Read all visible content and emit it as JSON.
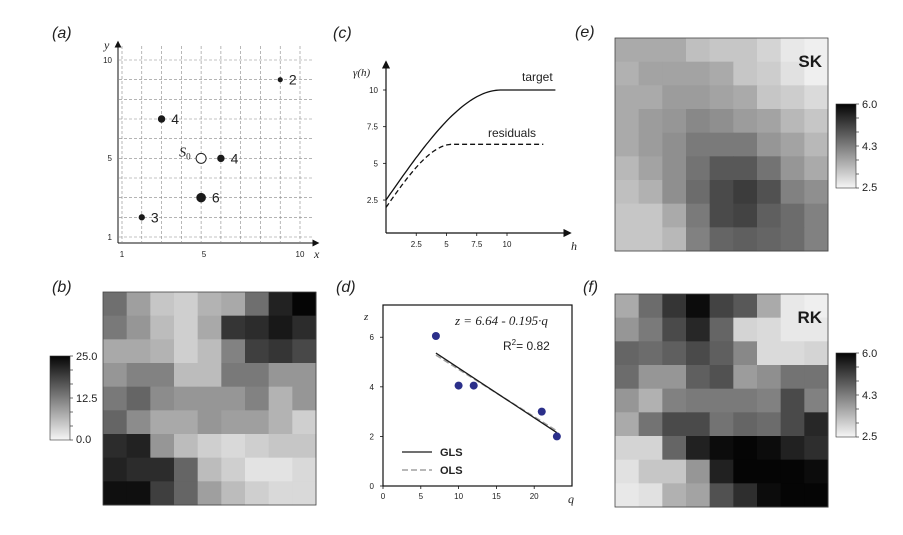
{
  "chart_data": [
    {
      "id": "a",
      "panel_label": "(a)",
      "type": "scatter",
      "title": "",
      "xlabel": "x",
      "ylabel": "y",
      "xlim": [
        1,
        10
      ],
      "ylim": [
        1,
        10
      ],
      "xticks": [
        "1",
        "5",
        "10"
      ],
      "yticks": [
        "1",
        "5",
        "10"
      ],
      "grid": true,
      "points": [
        {
          "x": 2,
          "y": 2,
          "value": 3,
          "label": "3"
        },
        {
          "x": 3,
          "y": 7,
          "value": 4,
          "label": "4"
        },
        {
          "x": 5,
          "y": 3,
          "value": 6,
          "label": "6"
        },
        {
          "x": 6,
          "y": 5,
          "value": 4,
          "label": "4"
        },
        {
          "x": 9,
          "y": 9,
          "value": 2,
          "label": "2"
        }
      ],
      "target_point": {
        "x": 5,
        "y": 5,
        "label": "S",
        "subscript": "0"
      }
    },
    {
      "id": "b",
      "panel_label": "(b)",
      "type": "heatmap",
      "title": "",
      "colorbar": {
        "min": 0.0,
        "max": 25.0,
        "ticks": [
          "0.0",
          "12.5",
          "25.0"
        ]
      },
      "values": [
        [
          14,
          9,
          5,
          4,
          7,
          8,
          14,
          22,
          25
        ],
        [
          13,
          10,
          6,
          4,
          8,
          20,
          21,
          23,
          21
        ],
        [
          8,
          8,
          7,
          4,
          6,
          12,
          19,
          20,
          18
        ],
        [
          10,
          12,
          12,
          6,
          6,
          13,
          13,
          10,
          10
        ],
        [
          13,
          15,
          11,
          10,
          10,
          10,
          12,
          7,
          10
        ],
        [
          15,
          11,
          8,
          8,
          10,
          9,
          9,
          7,
          4
        ],
        [
          21,
          22,
          10,
          6,
          4,
          3,
          4,
          5,
          5
        ],
        [
          22,
          21,
          21,
          15,
          6,
          4,
          2,
          2,
          3
        ],
        [
          24,
          24,
          19,
          15,
          9,
          6,
          4,
          3,
          3
        ]
      ]
    },
    {
      "id": "c",
      "panel_label": "(c)",
      "type": "line",
      "title": "",
      "xlabel": "h",
      "ylabel": "γ(h)",
      "xlim": [
        0,
        14
      ],
      "ylim": [
        0,
        11
      ],
      "xticks": [
        "2.5",
        "5",
        "7.5",
        "10"
      ],
      "yticks": [
        "2.5",
        "5",
        "7.5",
        "10"
      ],
      "series": [
        {
          "name": "target",
          "style": "solid",
          "nugget": 2.5,
          "sill": 10,
          "range": 9.5,
          "x_end": 14
        },
        {
          "name": "residuals",
          "style": "dashed",
          "nugget": 2.0,
          "sill": 6.3,
          "range": 5.5,
          "x_end": 13
        }
      ]
    },
    {
      "id": "d",
      "panel_label": "(d)",
      "type": "scatter",
      "title": "",
      "xlabel": "q",
      "ylabel": "z",
      "xlim": [
        0,
        25
      ],
      "ylim": [
        0,
        7.3
      ],
      "xticks": [
        "0",
        "5",
        "10",
        "15",
        "20"
      ],
      "yticks": [
        "0",
        "2",
        "4",
        "6"
      ],
      "points": [
        {
          "x": 7,
          "y": 6.05
        },
        {
          "x": 10,
          "y": 4.05
        },
        {
          "x": 12,
          "y": 4.05
        },
        {
          "x": 21,
          "y": 3.0
        },
        {
          "x": 23,
          "y": 2.0
        }
      ],
      "lines": [
        {
          "name": "GLS",
          "style": "solid",
          "x": [
            7,
            23
          ],
          "y": [
            5.36,
            2.15
          ]
        },
        {
          "name": "OLS",
          "style": "dashed",
          "x": [
            7,
            23
          ],
          "y": [
            5.28,
            2.22
          ]
        }
      ],
      "equation": "z = 6.64 - 0.195·q",
      "r2_label": "R",
      "r2_sup": "2",
      "r2_value": "= 0.82",
      "legend_position": "bottom-left"
    },
    {
      "id": "e",
      "panel_label": "(e)",
      "type": "heatmap",
      "title": "SK",
      "colorbar": {
        "min": 2.5,
        "max": 6.0,
        "ticks": [
          "2.5",
          "4.3",
          "6.0"
        ]
      },
      "values": [
        [
          3.6,
          3.6,
          3.6,
          3.3,
          3.2,
          3.2,
          3.0,
          2.7,
          2.6
        ],
        [
          3.5,
          3.7,
          3.7,
          3.7,
          3.6,
          3.2,
          3.1,
          2.8,
          2.6
        ],
        [
          3.6,
          3.6,
          3.8,
          3.8,
          3.7,
          3.6,
          3.2,
          3.1,
          2.9
        ],
        [
          3.6,
          3.8,
          3.9,
          4.1,
          4.0,
          3.8,
          3.7,
          3.4,
          3.2
        ],
        [
          3.6,
          3.8,
          4.0,
          4.3,
          4.3,
          4.3,
          3.9,
          3.7,
          3.4
        ],
        [
          3.4,
          3.7,
          4.0,
          4.4,
          4.8,
          4.8,
          4.4,
          3.9,
          3.6
        ],
        [
          3.3,
          3.5,
          4.0,
          4.5,
          5.0,
          5.2,
          4.9,
          4.2,
          4.0
        ],
        [
          3.2,
          3.2,
          3.6,
          4.3,
          5.0,
          5.1,
          4.7,
          4.5,
          4.2
        ],
        [
          3.2,
          3.2,
          3.4,
          4.2,
          4.6,
          4.7,
          4.6,
          4.5,
          4.2
        ]
      ]
    },
    {
      "id": "f",
      "panel_label": "(f)",
      "type": "heatmap",
      "title": "RK",
      "colorbar": {
        "min": 2.5,
        "max": 6.0,
        "ticks": [
          "2.5",
          "4.3",
          "6.0"
        ]
      },
      "values": [
        [
          3.6,
          4.5,
          5.3,
          5.9,
          5.1,
          4.8,
          3.6,
          2.7,
          2.6
        ],
        [
          3.9,
          4.3,
          5.0,
          5.5,
          4.6,
          3.0,
          2.9,
          2.7,
          2.7
        ],
        [
          4.6,
          4.5,
          4.7,
          5.0,
          4.7,
          4.1,
          2.9,
          2.9,
          3.0
        ],
        [
          4.5,
          3.9,
          3.9,
          4.7,
          4.9,
          3.8,
          4.0,
          4.4,
          4.4
        ],
        [
          3.9,
          3.5,
          4.2,
          4.3,
          4.3,
          4.3,
          4.2,
          5.0,
          4.2
        ],
        [
          3.6,
          4.4,
          5.0,
          5.0,
          4.4,
          4.6,
          4.5,
          5.0,
          5.5
        ],
        [
          3.0,
          3.0,
          4.6,
          5.6,
          5.9,
          6.0,
          5.9,
          5.6,
          5.4
        ],
        [
          2.8,
          3.2,
          3.2,
          3.9,
          5.6,
          6.0,
          6.0,
          6.0,
          5.9
        ],
        [
          2.7,
          2.8,
          3.5,
          3.7,
          4.9,
          5.4,
          5.9,
          6.0,
          6.0
        ]
      ]
    }
  ],
  "colors": {
    "point_dark": "#1a1a1a",
    "regression_point": "#2b2f8a",
    "ols_line": "#a0a0a0",
    "gls_line": "#1a1a1a"
  }
}
